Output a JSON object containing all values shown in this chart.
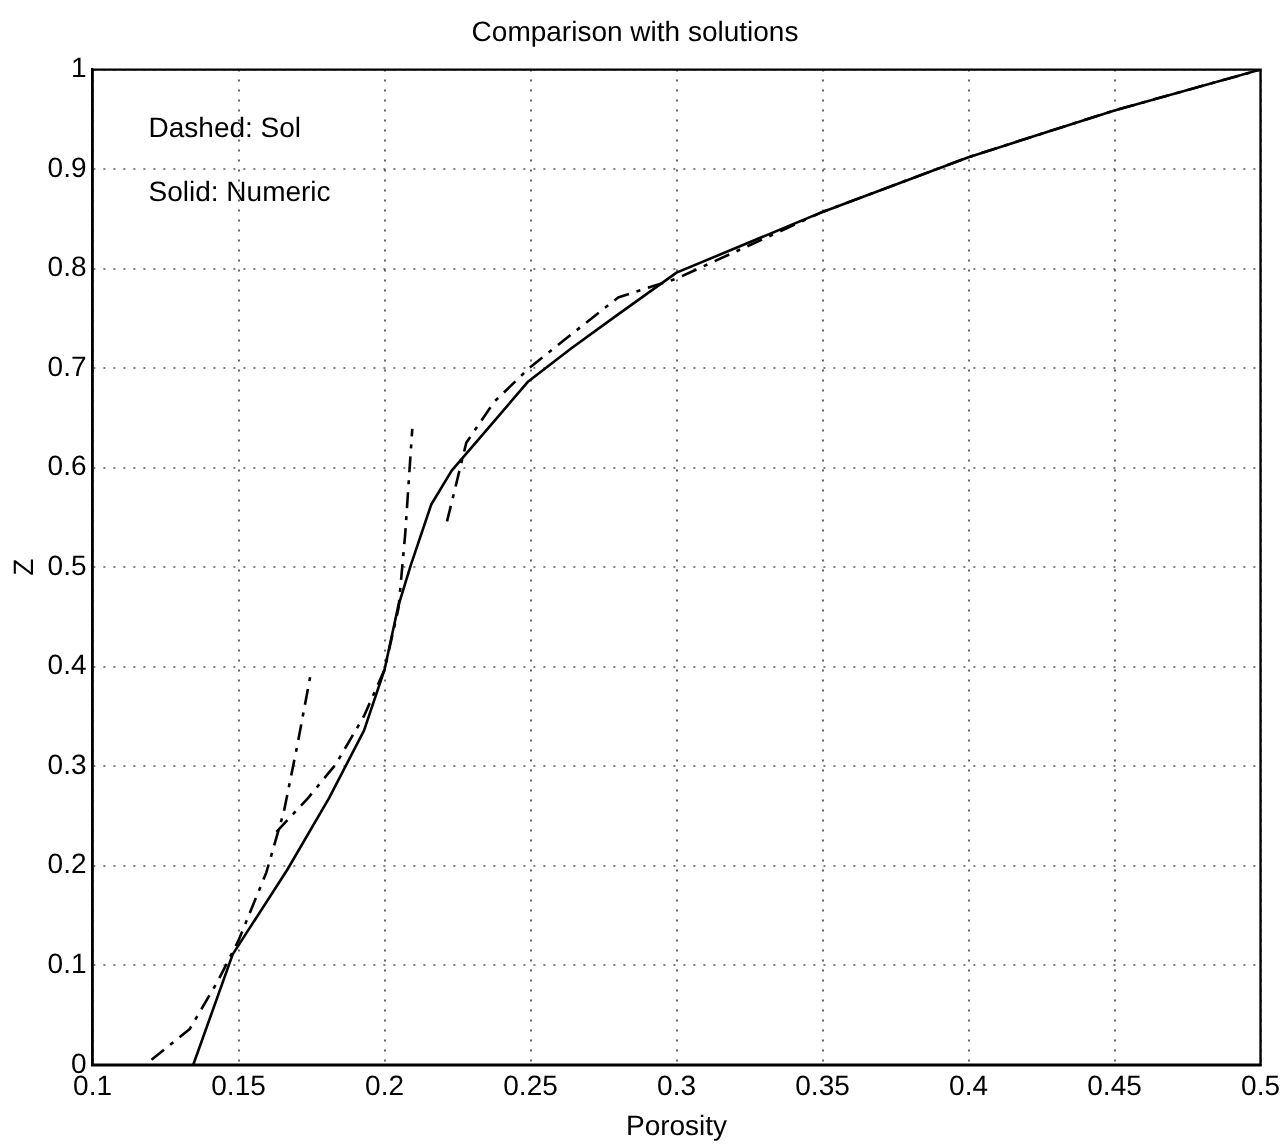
{
  "chart_data": {
    "type": "line",
    "title": "Comparison with solutions",
    "xlabel": "Porosity",
    "ylabel": "Z",
    "annotations": [
      "Dashed: Sol",
      "Solid: Numeric"
    ],
    "xlim": [
      0.1,
      0.5
    ],
    "xticks": [
      0.1,
      0.15,
      0.2,
      0.25,
      0.3,
      0.35,
      0.4,
      0.45,
      0.5
    ],
    "ylim": [
      0,
      1
    ],
    "yticks": [
      0,
      0.1,
      0.2,
      0.3,
      0.4,
      0.5,
      0.6,
      0.7,
      0.8,
      0.9,
      1
    ],
    "grid": true,
    "legend": false,
    "marker": "none",
    "series": [
      {
        "color": "#000000",
        "line_style": "solid",
        "x": [
          0.1345,
          0.148,
          0.1667,
          0.181,
          0.193,
          0.2,
          0.2047,
          0.209,
          0.216,
          0.223,
          0.235,
          0.249,
          0.264,
          0.28,
          0.3,
          0.35,
          0.4,
          0.45,
          0.5
        ],
        "values": [
          0,
          0.111,
          0.196,
          0.268,
          0.336,
          0.397,
          0.461,
          0.502,
          0.563,
          0.597,
          0.638,
          0.686,
          0.72,
          0.754,
          0.796,
          0.857,
          0.912,
          0.959,
          1
        ]
      },
      {
        "color": "#000000",
        "line_style": "dashed",
        "x": [
          0.1202,
          0.1333,
          0.1429,
          0.15,
          0.1595,
          0.1655,
          0.1702,
          0.175
        ],
        "values": [
          0.005,
          0.036,
          0.084,
          0.125,
          0.193,
          0.254,
          0.322,
          0.397
        ]
      },
      {
        "color": "#000000",
        "line_style": "dashed",
        "x": [
          0.163,
          0.1738,
          0.1833,
          0.1929,
          0.2,
          0.2048,
          0.2071,
          0.2095
        ],
        "values": [
          0.234,
          0.268,
          0.302,
          0.35,
          0.397,
          0.459,
          0.534,
          0.639
        ]
      },
      {
        "color": "#000000",
        "line_style": "dashed",
        "x": [
          0.2214,
          0.228,
          0.2375,
          0.2495,
          0.264,
          0.28,
          0.3,
          0.35,
          0.4,
          0.45,
          0.5
        ],
        "values": [
          0.546,
          0.625,
          0.666,
          0.7,
          0.734,
          0.771,
          0.79,
          0.857,
          0.912,
          0.959,
          1
        ]
      }
    ]
  }
}
